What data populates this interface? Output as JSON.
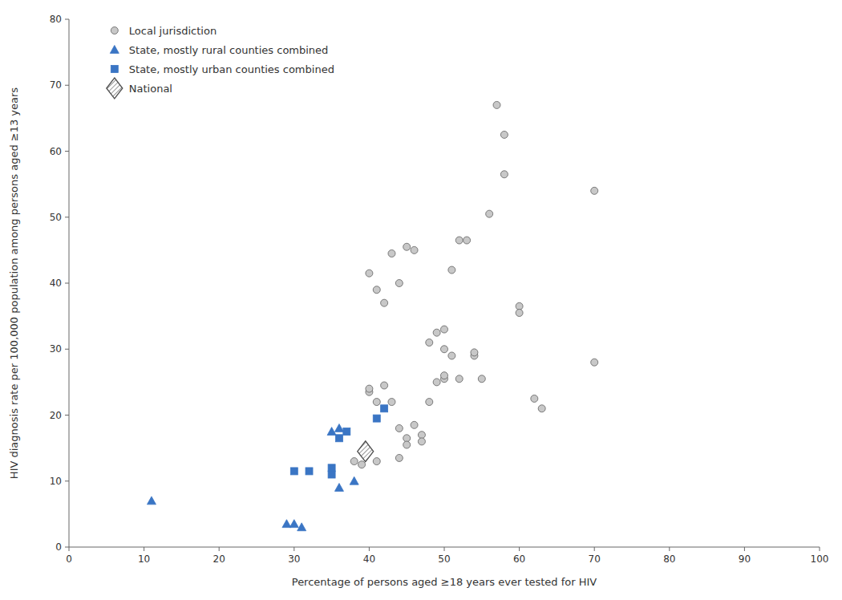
{
  "chart_data": {
    "type": "scatter",
    "xlabel": "Percentage of persons aged ≥18 years ever tested for HIV",
    "ylabel": "HIV diagnosis rate per 100,000 population among persons aged ≥13 years",
    "xlim": [
      0,
      100
    ],
    "ylim": [
      0,
      80
    ],
    "xticks": [
      0,
      10,
      20,
      30,
      40,
      50,
      60,
      70,
      80,
      90,
      100
    ],
    "yticks": [
      0,
      10,
      20,
      30,
      40,
      50,
      60,
      70,
      80
    ],
    "grid": false,
    "legend": "upper left",
    "series": [
      {
        "name": "Local jurisdiction",
        "color": "#c8c8c8",
        "marker": "circle",
        "x": [
          40,
          41,
          42,
          43,
          44,
          45,
          46,
          48,
          49,
          50,
          50,
          51,
          52,
          53,
          54,
          55,
          56,
          57,
          58,
          58,
          60,
          60,
          62,
          63,
          70,
          70,
          40,
          40,
          41,
          42,
          43,
          44,
          45,
          45,
          46,
          47,
          47,
          48,
          49,
          50,
          50,
          51,
          52,
          54,
          38,
          39,
          41,
          44
        ],
        "values": [
          41.5,
          39.0,
          37.0,
          44.5,
          40.0,
          45.5,
          45.0,
          31.0,
          32.5,
          33.0,
          30.0,
          42.0,
          46.5,
          46.5,
          29.0,
          25.5,
          50.5,
          67.0,
          62.5,
          56.5,
          36.5,
          35.5,
          22.5,
          21.0,
          54.0,
          28.0,
          23.5,
          24.0,
          22.0,
          24.5,
          22.0,
          18.0,
          16.5,
          15.5,
          18.5,
          17.0,
          16.0,
          22.0,
          25.0,
          25.5,
          26.0,
          29.0,
          25.5,
          29.5,
          13.0,
          12.5,
          13.0,
          13.5
        ]
      },
      {
        "name": "State, mostly rural counties combined",
        "color": "#3a75c4",
        "marker": "triangle",
        "x": [
          29,
          30,
          31,
          11,
          36,
          36,
          35,
          38
        ],
        "values": [
          3.5,
          3.5,
          3.0,
          7.0,
          9.0,
          18.0,
          17.5,
          10.0
        ]
      },
      {
        "name": "State, mostly urban counties combined",
        "color": "#3a75c4",
        "marker": "square",
        "x": [
          30,
          32,
          35,
          35,
          36,
          37,
          41,
          42
        ],
        "values": [
          11.5,
          11.5,
          12.0,
          11.0,
          16.5,
          17.5,
          19.5,
          21.0
        ]
      },
      {
        "name": "National",
        "color": "#505050",
        "marker": "diamond",
        "x": [
          39.5
        ],
        "values": [
          14.5
        ]
      }
    ]
  }
}
